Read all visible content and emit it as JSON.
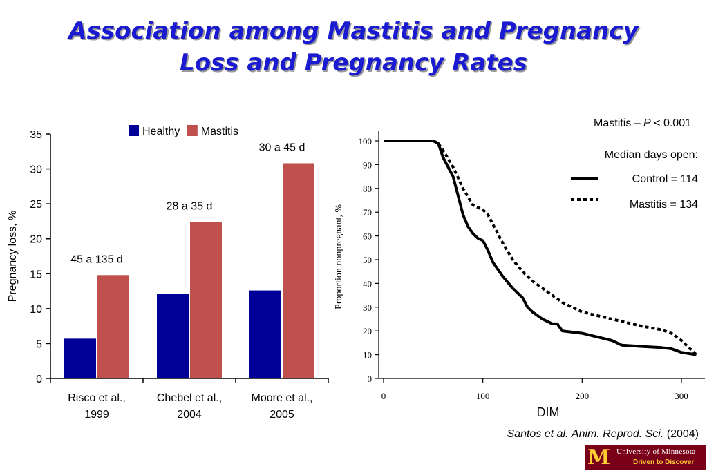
{
  "slide": {
    "title_line1": "Association among Mastitis and Pregnancy",
    "title_line2": "Loss and Pregnancy Rates",
    "citation_authors": "Santos et al.",
    "citation_journal": "Anim. Reprod. Sci.",
    "citation_year": "(2004)",
    "logo_line1": "University of Minnesota",
    "logo_line2": "Driven to Discover",
    "logo_mark": "M"
  },
  "chart_data": [
    {
      "type": "bar",
      "ylabel": "Pregnancy loss, %",
      "ylim": [
        0,
        35
      ],
      "yticks": [
        0,
        5,
        10,
        15,
        20,
        25,
        30,
        35
      ],
      "legend_position": "top-center",
      "categories": [
        [
          "Risco et al.,",
          "1999"
        ],
        [
          "Chebel et al.,",
          "2004"
        ],
        [
          "Moore et al.,",
          "2005"
        ]
      ],
      "series": [
        {
          "name": "Healthy",
          "color": "#000099",
          "values": [
            5.7,
            12.1,
            12.6
          ]
        },
        {
          "name": "Mastitis",
          "color": "#c0504d",
          "values": [
            14.8,
            22.4,
            30.8
          ]
        }
      ],
      "annotations": [
        "45 a 135 d",
        "28 a 35 d",
        "30 a 45 d"
      ]
    },
    {
      "type": "line",
      "xlabel": "DIM",
      "ylabel": "Proportion nonpregnant, %",
      "xlim": [
        0,
        320
      ],
      "ylim": [
        0,
        100
      ],
      "xticks": [
        0,
        100,
        200,
        300
      ],
      "yticks": [
        0,
        10,
        20,
        30,
        40,
        50,
        60,
        70,
        80,
        90,
        100
      ],
      "stat_label": "Mastitis – ",
      "stat_p": "P",
      "stat_value": " < 0.001",
      "legend_title": "Median days open:",
      "series": [
        {
          "name": "Control = 114",
          "style": "solid",
          "color": "#000000",
          "x": [
            0,
            20,
            40,
            50,
            55,
            60,
            70,
            75,
            80,
            85,
            90,
            95,
            100,
            105,
            110,
            115,
            120,
            130,
            140,
            145,
            150,
            160,
            170,
            175,
            180,
            200,
            210,
            230,
            240,
            260,
            280,
            290,
            300,
            315
          ],
          "y": [
            100,
            100,
            100,
            100,
            99,
            93,
            85,
            77,
            69,
            64,
            61,
            59,
            58,
            54,
            49,
            46,
            43,
            38,
            34,
            30,
            28,
            25,
            23,
            23,
            20,
            19,
            18,
            16,
            14,
            13.5,
            13,
            12.5,
            11,
            10
          ]
        },
        {
          "name": "Mastitis = 134",
          "style": "dotted",
          "color": "#000000",
          "x": [
            0,
            20,
            40,
            50,
            55,
            60,
            70,
            80,
            90,
            100,
            105,
            110,
            120,
            130,
            140,
            150,
            160,
            170,
            180,
            200,
            220,
            240,
            260,
            280,
            290,
            300,
            315
          ],
          "y": [
            100,
            100,
            100,
            100,
            99,
            96,
            89,
            80,
            73,
            71,
            69,
            65,
            57,
            50,
            45,
            41,
            38,
            35,
            32,
            28,
            26,
            24,
            22,
            20.5,
            19,
            16,
            10
          ]
        }
      ]
    }
  ]
}
